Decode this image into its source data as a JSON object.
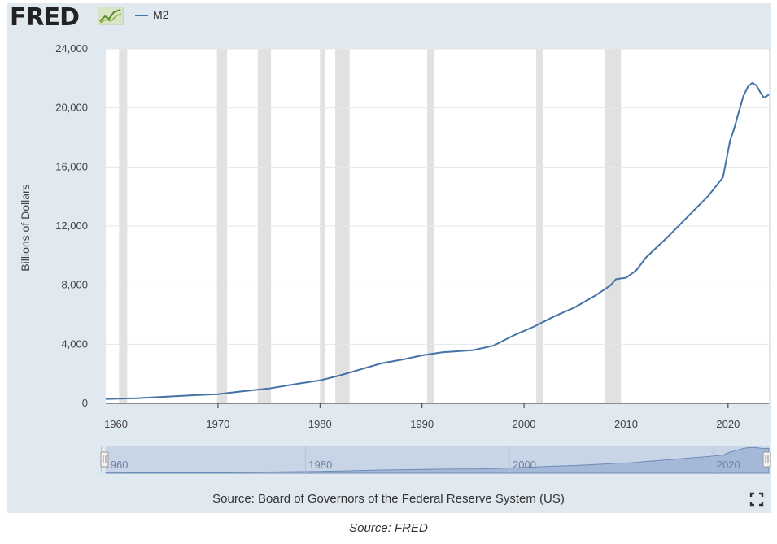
{
  "header": {
    "logo_text": "FRED",
    "logo_mark": "R",
    "legend_label": "M2"
  },
  "footer": {
    "source": "Source: Board of Governors of the Federal Reserve System (US)",
    "caption": "Source: FRED"
  },
  "colors": {
    "line": "#4572a7",
    "panel": "#e1e9f0",
    "plot_bg": "#ffffff",
    "recession": "#e1e1e1",
    "navigator_fill": "#8fa8cc"
  },
  "chart_data": {
    "type": "line",
    "title": "",
    "xlabel": "",
    "ylabel": "Billions of Dollars",
    "xlim": [
      1959,
      2024
    ],
    "ylim": [
      0,
      24000
    ],
    "yticks": [
      0,
      4000,
      8000,
      12000,
      16000,
      20000,
      24000
    ],
    "ytick_labels": [
      "0",
      "4,000",
      "8,000",
      "12,000",
      "16,000",
      "20,000",
      "24,000"
    ],
    "xticks": [
      1960,
      1970,
      1980,
      1990,
      2000,
      2010,
      2020
    ],
    "xtick_labels": [
      "1960",
      "1970",
      "1980",
      "1990",
      "2000",
      "2010",
      "2020"
    ],
    "navigator_ticks": [
      "1960",
      "1980",
      "2000",
      "2020"
    ],
    "grid": true,
    "legend_position": "top-left",
    "recessions": [
      [
        1960.3,
        1961.1
      ],
      [
        1969.9,
        1970.9
      ],
      [
        1973.9,
        1975.2
      ],
      [
        1980.0,
        1980.5
      ],
      [
        1981.5,
        1982.9
      ],
      [
        1990.5,
        1991.2
      ],
      [
        2001.2,
        2001.9
      ],
      [
        2007.9,
        2009.5
      ]
    ],
    "series": [
      {
        "name": "M2",
        "x": [
          1959,
          1962,
          1965,
          1968,
          1970,
          1972,
          1975,
          1978,
          1980,
          1982,
          1984,
          1986,
          1988,
          1990,
          1992,
          1995,
          1997,
          1999,
          2001,
          2003,
          2005,
          2007,
          2008.5,
          2009,
          2010,
          2011,
          2012,
          2014,
          2016,
          2018,
          2019.5,
          2020.2,
          2020.6,
          2021,
          2021.5,
          2022,
          2022.4,
          2022.8,
          2023.2,
          2023.5,
          2023.8,
          2024
        ],
        "y": [
          300,
          340,
          450,
          560,
          620,
          780,
          1000,
          1350,
          1550,
          1900,
          2300,
          2700,
          2950,
          3250,
          3450,
          3600,
          3900,
          4600,
          5200,
          5900,
          6500,
          7300,
          8000,
          8400,
          8500,
          9000,
          9900,
          11200,
          12600,
          14000,
          15300,
          17800,
          18600,
          19600,
          20800,
          21500,
          21700,
          21500,
          21000,
          20700,
          20800,
          20900
        ]
      }
    ]
  }
}
